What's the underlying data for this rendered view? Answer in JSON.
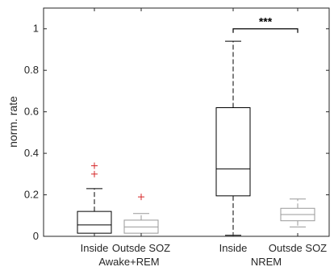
{
  "chart_data": {
    "type": "box",
    "ylabel": "norm. rate",
    "ylim": [
      0,
      1.1
    ],
    "yticks": [
      "0",
      "0.2",
      "0.4",
      "0.6",
      "0.8",
      "1"
    ],
    "ytick_values": [
      0,
      0.2,
      0.4,
      0.6,
      0.8,
      1.0
    ],
    "groups": [
      "Awake+REM",
      "NREM"
    ],
    "categories": [
      "Inside",
      "Outsde SOZ",
      "Inside",
      "Outsde SOZ"
    ],
    "boxes": [
      {
        "name": "Inside",
        "group": "Awake+REM",
        "whisker_low": 0.0,
        "q1": 0.015,
        "median": 0.055,
        "q3": 0.12,
        "whisker_high": 0.23,
        "outliers": [
          0.3,
          0.34
        ],
        "color": "#000000"
      },
      {
        "name": "Outsde SOZ",
        "group": "Awake+REM",
        "whisker_low": 0.0,
        "q1": 0.015,
        "median": 0.045,
        "q3": 0.078,
        "whisker_high": 0.11,
        "outliers": [
          0.19
        ],
        "color": "#999999"
      },
      {
        "name": "Inside",
        "group": "NREM",
        "whisker_low": 0.005,
        "q1": 0.195,
        "median": 0.325,
        "q3": 0.62,
        "whisker_high": 0.94,
        "outliers": [],
        "color": "#000000"
      },
      {
        "name": "Outsde SOZ",
        "group": "NREM",
        "whisker_low": 0.045,
        "q1": 0.075,
        "median": 0.105,
        "q3": 0.135,
        "whisker_high": 0.18,
        "outliers": [],
        "color": "#999999"
      }
    ],
    "significance": {
      "between": [
        2,
        3
      ],
      "y": 1.0,
      "label": "***"
    },
    "outlier_color": "#d62728",
    "grid": false
  }
}
